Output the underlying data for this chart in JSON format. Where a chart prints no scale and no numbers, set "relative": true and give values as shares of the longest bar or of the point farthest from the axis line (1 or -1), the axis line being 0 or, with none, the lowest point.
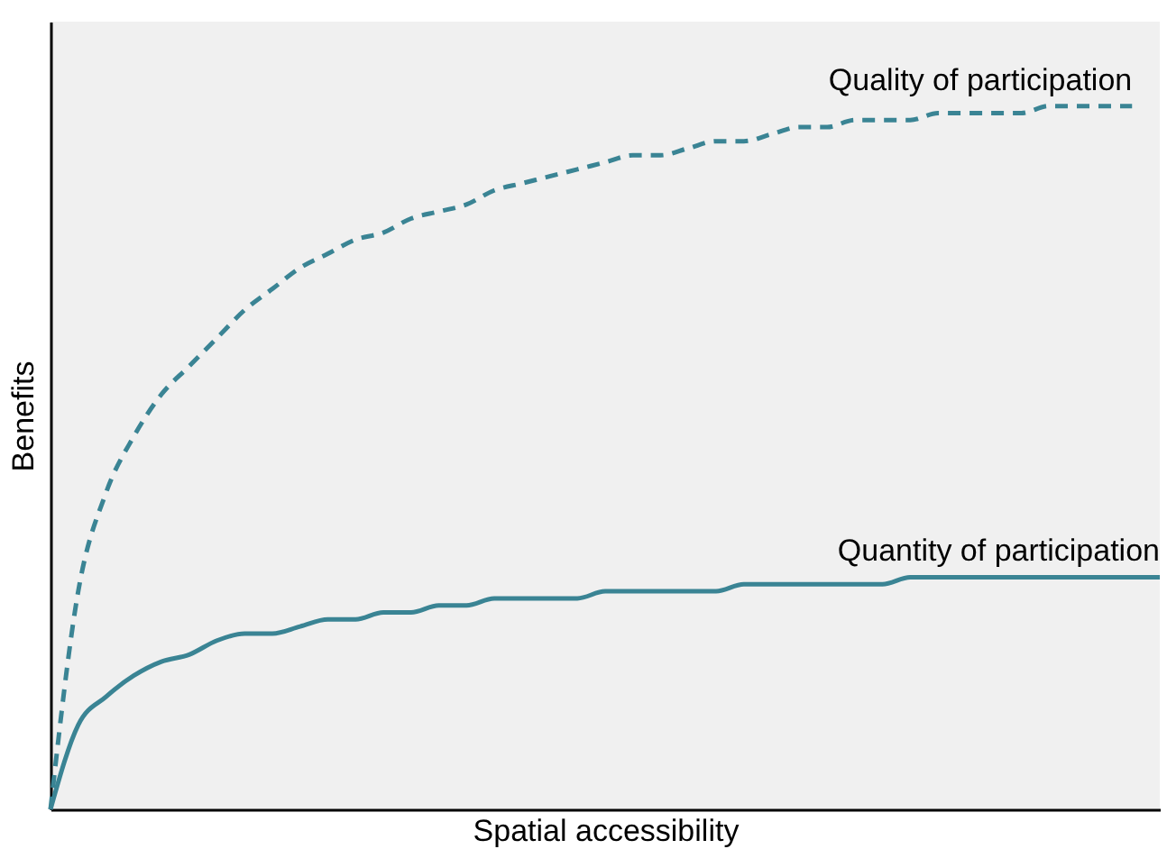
{
  "chart_data": {
    "type": "line",
    "relative": true,
    "xlabel": "Spatial accessibility",
    "ylabel": "Benefits",
    "legend": false,
    "marker": "none",
    "categories": [
      null,
      null,
      null,
      null,
      null,
      null,
      null,
      null,
      null,
      null,
      null,
      null,
      null,
      null,
      null,
      null,
      null,
      null,
      null,
      null,
      null,
      null,
      null,
      null,
      null,
      null,
      null,
      null,
      null,
      null,
      null,
      null,
      null,
      null,
      null,
      null,
      null,
      null,
      null,
      null,
      null
    ],
    "series": [
      {
        "name": "Quality of participation",
        "color": "#3a8494",
        "line_style": "dashed",
        "values": [
          0,
          0.31,
          0.45,
          0.53,
          0.59,
          0.63,
          0.67,
          0.71,
          0.74,
          0.77,
          0.79,
          0.81,
          0.82,
          0.84,
          0.85,
          0.86,
          0.88,
          0.89,
          0.9,
          0.91,
          0.92,
          0.93,
          0.93,
          0.94,
          0.95,
          0.95,
          0.96,
          0.97,
          0.97,
          0.98,
          0.98,
          0.98,
          0.99,
          0.99,
          0.99,
          0.99,
          1,
          1,
          1,
          1,
          null
        ]
      },
      {
        "name": "Quantity of participation",
        "color": "#3a8494",
        "line_style": "solid",
        "values": [
          0,
          0.12,
          0.16,
          0.19,
          0.21,
          0.22,
          0.24,
          0.25,
          0.25,
          0.26,
          0.27,
          0.27,
          0.28,
          0.28,
          0.29,
          0.29,
          0.3,
          0.3,
          0.3,
          0.3,
          0.31,
          0.31,
          0.31,
          0.31,
          0.31,
          0.32,
          0.32,
          0.32,
          0.32,
          0.32,
          0.32,
          0.33,
          0.33,
          0.33,
          0.33,
          0.33,
          0.33,
          0.33,
          0.33,
          0.33,
          0.33
        ]
      }
    ]
  }
}
